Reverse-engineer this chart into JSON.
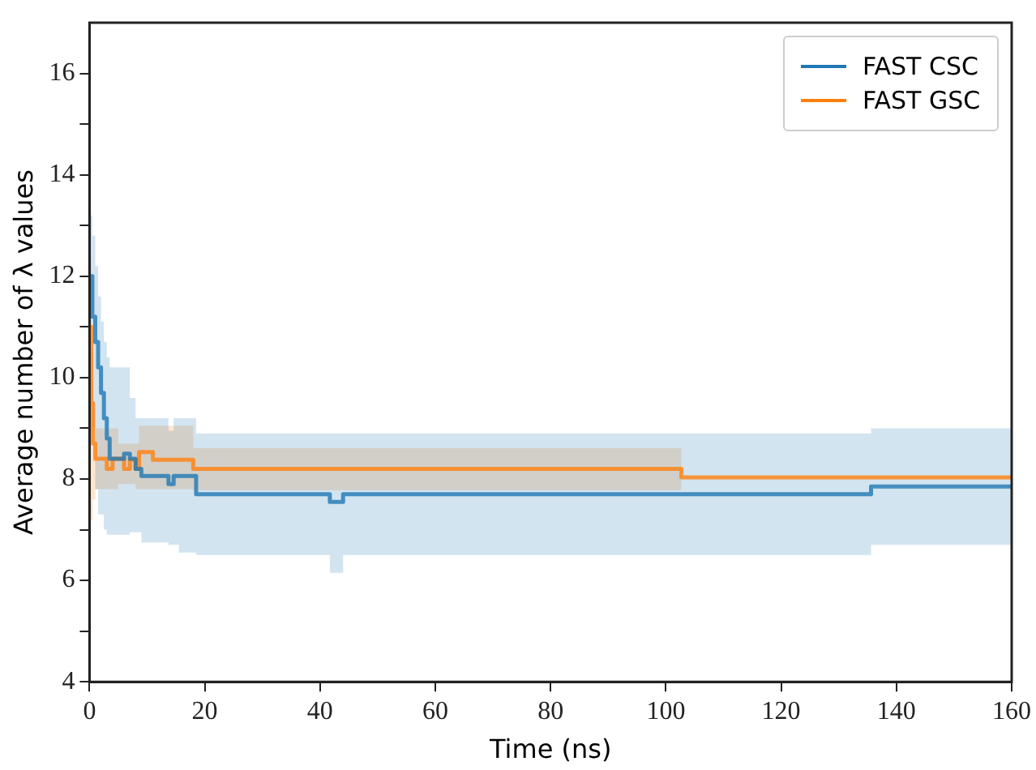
{
  "chart_data": {
    "type": "step",
    "xlabel": "Time (ns)",
    "ylabel": "Average number of λ values",
    "xlim": [
      0,
      160
    ],
    "xticks": [
      0,
      20,
      40,
      60,
      80,
      100,
      120,
      140,
      160
    ],
    "ylim": [
      4,
      17
    ],
    "yticks": [
      4,
      {
        "value": 5,
        "label": null
      },
      6,
      {
        "value": 7,
        "label": null
      },
      8,
      {
        "value": 9,
        "label": null
      },
      10,
      {
        "value": 11,
        "label": null
      },
      12,
      {
        "value": 13,
        "label": null
      },
      14,
      {
        "value": 15,
        "label": null
      },
      16
    ],
    "grid": false,
    "legend": "top right",
    "line_style": "solid",
    "marker": "none",
    "series": [
      {
        "name": "FAST CSC",
        "color": "#1f77b4",
        "x": [
          0,
          0.5,
          1,
          1.5,
          2,
          2.5,
          3,
          3.5,
          4,
          5,
          6,
          7,
          8,
          9,
          10,
          13.7,
          14.6,
          15.5,
          18.5,
          41.7,
          44,
          135.6,
          160
        ],
        "values": [
          12.0,
          11.2,
          10.7,
          10.2,
          9.7,
          9.2,
          8.8,
          8.4,
          8.4,
          8.4,
          8.5,
          8.4,
          8.2,
          8.06,
          8.06,
          7.9,
          8.06,
          8.06,
          7.7,
          7.55,
          7.7,
          7.85,
          7.85
        ],
        "upper": [
          13.2,
          12.8,
          12.2,
          11.6,
          11.1,
          10.7,
          10.4,
          10.2,
          10.2,
          10.2,
          10.2,
          9.6,
          9.2,
          9.2,
          9.2,
          8.95,
          9.2,
          9.2,
          8.9,
          8.9,
          8.9,
          9.0,
          9.0
        ],
        "lower": [
          11.0,
          9.0,
          7.8,
          7.3,
          7.3,
          7.0,
          6.9,
          6.9,
          6.9,
          6.9,
          6.9,
          6.95,
          6.95,
          6.75,
          6.75,
          6.7,
          6.7,
          6.55,
          6.5,
          6.15,
          6.5,
          6.7,
          6.7
        ]
      },
      {
        "name": "FAST GSC",
        "color": "#ff7f0e",
        "x": [
          0,
          0.3,
          0.6,
          1,
          2,
          3,
          4,
          5,
          6,
          7,
          8,
          8.6,
          11,
          18,
          102.7,
          160
        ],
        "values": [
          11.0,
          9.5,
          8.7,
          8.4,
          8.4,
          8.2,
          8.4,
          8.4,
          8.2,
          8.38,
          8.2,
          8.53,
          8.38,
          8.2,
          8.03,
          8.03
        ],
        "upper": [
          12.3,
          10.5,
          9.5,
          9.0,
          9.0,
          9.0,
          9.0,
          8.7,
          8.7,
          8.7,
          8.7,
          9.05,
          9.05,
          8.61,
          8.61,
          null
        ],
        "lower": [
          6.4,
          7.2,
          7.6,
          7.8,
          7.8,
          7.8,
          7.8,
          7.9,
          7.9,
          7.9,
          7.8,
          7.8,
          7.8,
          7.78,
          7.78,
          null
        ]
      }
    ]
  }
}
